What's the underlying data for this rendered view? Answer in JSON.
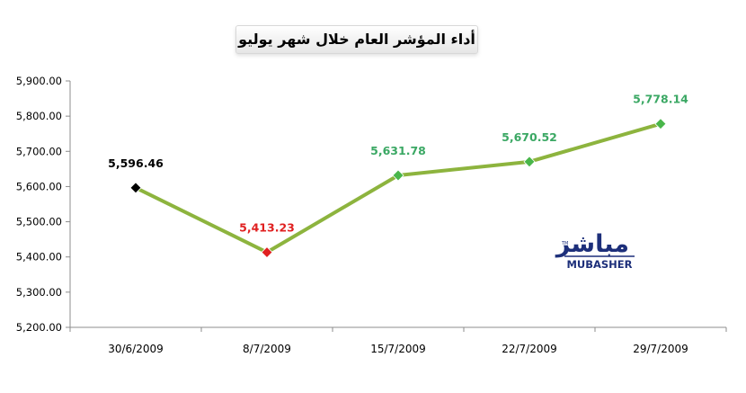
{
  "chart_data": {
    "type": "line",
    "title": "أداء المؤشر العام خلال شهر يوليو",
    "categories": [
      "30/6/2009",
      "8/7/2009",
      "15/7/2009",
      "22/7/2009",
      "29/7/2009"
    ],
    "values": [
      5596.46,
      5413.23,
      5631.78,
      5670.52,
      5778.14
    ],
    "data_labels": [
      "5,596.46",
      "5,413.23",
      "5,631.78",
      "5,670.52",
      "5,778.14"
    ],
    "yticks": [
      "5,200.00",
      "5,300.00",
      "5,400.00",
      "5,500.00",
      "5,600.00",
      "5,700.00",
      "5,800.00",
      "5,900.00"
    ],
    "ylim": [
      5200,
      5900
    ],
    "xlabel": "",
    "ylabel": "",
    "grid": false,
    "legend": "none",
    "colors": {
      "line": "#8db43e",
      "points": [
        "#000000",
        "#e02020",
        "#49b64a",
        "#49b64a",
        "#49b64a"
      ],
      "labels": [
        "#000000",
        "#e02020",
        "#3ba864",
        "#3ba864",
        "#3ba864"
      ]
    }
  },
  "logo": {
    "arabic": "مباشر",
    "latin": "MUBASHER",
    "tm": "TM",
    "color": "#1d2f7a"
  }
}
